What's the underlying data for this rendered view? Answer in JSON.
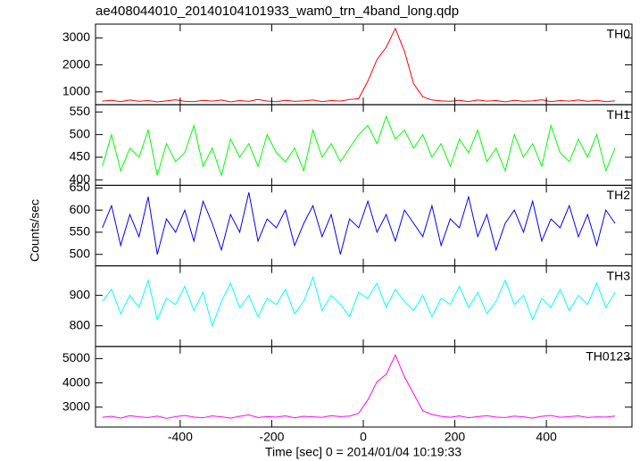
{
  "chart_data": {
    "type": "line",
    "title": "ae408044010_20140104101933_wam0_trn_4band_long.qdp",
    "xlabel": "Time [sec] 0 = 2014/01/04 10:19:33",
    "ylabel": "Counts/sec",
    "xlim": [
      -585,
      587
    ],
    "xticks": [
      -400,
      -200,
      0,
      200,
      400
    ],
    "x": [
      -570,
      -550,
      -530,
      -510,
      -490,
      -470,
      -450,
      -430,
      -410,
      -390,
      -370,
      -350,
      -330,
      -310,
      -290,
      -270,
      -250,
      -230,
      -210,
      -190,
      -170,
      -150,
      -130,
      -110,
      -90,
      -70,
      -50,
      -30,
      -10,
      10,
      30,
      50,
      70,
      90,
      110,
      130,
      150,
      170,
      190,
      210,
      230,
      250,
      270,
      290,
      310,
      330,
      350,
      370,
      390,
      410,
      430,
      450,
      470,
      490,
      510,
      530,
      550
    ],
    "series": [
      {
        "name": "TH0",
        "color": "#ff0000",
        "ylim": [
          525,
          3510
        ],
        "yticks": [
          1000,
          2000,
          3000
        ],
        "values": [
          660,
          690,
          640,
          700,
          650,
          680,
          630,
          670,
          710,
          650,
          640,
          690,
          660,
          700,
          630,
          680,
          650,
          720,
          660,
          640,
          690,
          650,
          670,
          700,
          640,
          680,
          660,
          720,
          750,
          1400,
          2200,
          2650,
          3350,
          2500,
          1300,
          820,
          700,
          670,
          650,
          690,
          640,
          700,
          660,
          680,
          630,
          690,
          650,
          670,
          710,
          640,
          680,
          660,
          700,
          650,
          690,
          640,
          670
        ]
      },
      {
        "name": "TH1",
        "color": "#00ff00",
        "ylim": [
          388,
          566
        ],
        "yticks": [
          400,
          450,
          500,
          550
        ],
        "values": [
          430,
          500,
          420,
          470,
          450,
          510,
          410,
          480,
          440,
          460,
          520,
          430,
          470,
          410,
          490,
          450,
          480,
          430,
          500,
          460,
          440,
          470,
          420,
          510,
          450,
          480,
          440,
          470,
          500,
          520,
          480,
          540,
          490,
          510,
          470,
          500,
          450,
          480,
          430,
          490,
          460,
          510,
          440,
          470,
          420,
          500,
          450,
          480,
          430,
          520,
          460,
          440,
          490,
          450,
          500,
          420,
          470
        ]
      },
      {
        "name": "TH2",
        "color": "#0000ff",
        "ylim": [
          474,
          656
        ],
        "yticks": [
          500,
          550,
          600,
          650
        ],
        "values": [
          560,
          610,
          520,
          590,
          540,
          630,
          500,
          580,
          550,
          600,
          530,
          620,
          570,
          510,
          590,
          550,
          640,
          530,
          580,
          560,
          600,
          520,
          570,
          610,
          540,
          590,
          500,
          580,
          560,
          620,
          550,
          590,
          530,
          600,
          570,
          540,
          610,
          520,
          580,
          560,
          630,
          540,
          590,
          510,
          570,
          600,
          550,
          620,
          530,
          580,
          560,
          610,
          540,
          590,
          520,
          600,
          570
        ]
      },
      {
        "name": "TH3",
        "color": "#00ffff",
        "ylim": [
          732,
          997
        ],
        "yticks": [
          800,
          900
        ],
        "values": [
          880,
          920,
          840,
          900,
          860,
          950,
          820,
          890,
          870,
          930,
          850,
          910,
          800,
          880,
          940,
          860,
          900,
          830,
          890,
          870,
          920,
          840,
          880,
          960,
          850,
          900,
          870,
          830,
          910,
          890,
          940,
          860,
          920,
          880,
          850,
          900,
          830,
          890,
          870,
          930,
          860,
          910,
          840,
          880,
          950,
          870,
          900,
          820,
          890,
          860,
          920,
          850,
          900,
          870,
          940,
          860,
          910
        ]
      },
      {
        "name": "TH0123",
        "color": "#ff00ff",
        "ylim": [
          2180,
          5500
        ],
        "yticks": [
          3000,
          4000,
          5000
        ],
        "values": [
          2580,
          2620,
          2550,
          2650,
          2600,
          2570,
          2630,
          2540,
          2610,
          2660,
          2590,
          2560,
          2640,
          2600,
          2550,
          2620,
          2680,
          2570,
          2610,
          2590,
          2640,
          2560,
          2620,
          2600,
          2580,
          2650,
          2610,
          2630,
          2750,
          3300,
          4050,
          4350,
          5150,
          4250,
          3550,
          2850,
          2700,
          2620,
          2580,
          2640,
          2560,
          2610,
          2650,
          2590,
          2570,
          2630,
          2600,
          2550,
          2620,
          2660,
          2580,
          2610,
          2640,
          2570,
          2600,
          2590,
          2630
        ]
      }
    ]
  }
}
